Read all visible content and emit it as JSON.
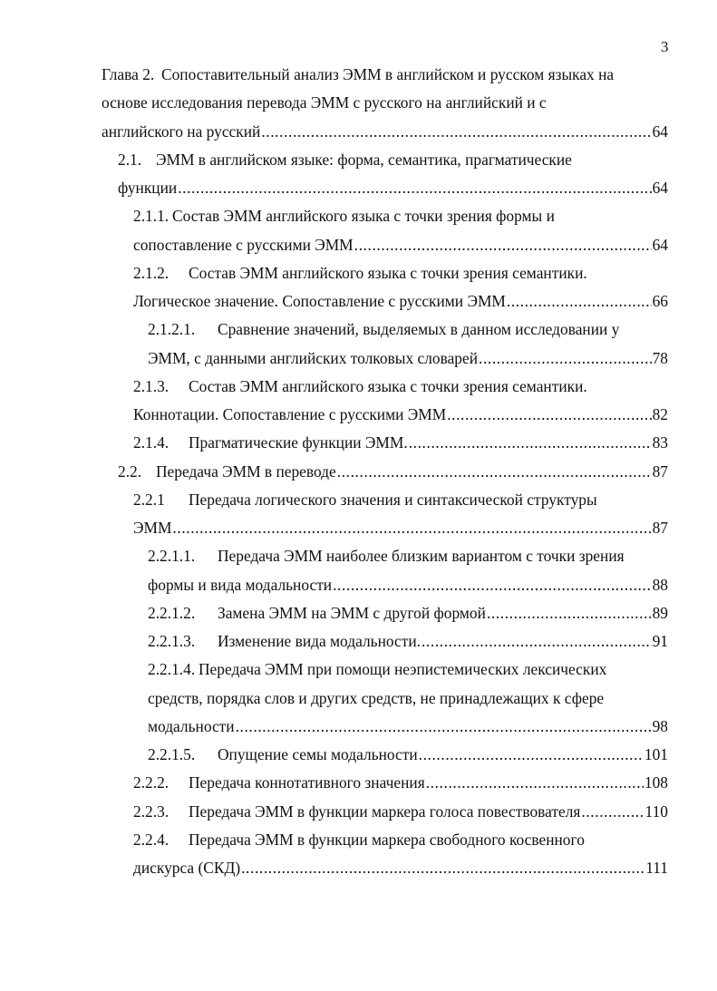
{
  "page_number": "3",
  "toc": [
    {
      "num": "Глава 2.",
      "lines": [
        "Сопоставительный анализ ЭММ в английском и русском языках на",
        "основе исследования перевода ЭММ с русского на английский и с",
        "английского на русский"
      ],
      "page": "64"
    },
    {
      "num": "2.1.",
      "lines": [
        "ЭММ в английском языке: форма, семантика, прагматические",
        "функции"
      ],
      "page": "64"
    },
    {
      "num": "2.1.1.",
      "lines": [
        "Состав ЭММ английского языка с точки зрения формы и",
        "сопоставление с русскими ЭММ"
      ],
      "page": "64"
    },
    {
      "num": "2.1.2.",
      "lines": [
        "Состав ЭММ английского языка с точки зрения семантики.",
        "Логическое значение. Сопоставление с русскими ЭММ"
      ],
      "page": "66"
    },
    {
      "num": "2.1.2.1.",
      "lines": [
        "Сравнение значений, выделяемых в данном исследовании у",
        "ЭММ, с данными английских толковых словарей"
      ],
      "page": "78"
    },
    {
      "num": "2.1.3.",
      "lines": [
        "Состав ЭММ английского языка с точки зрения семантики.",
        "Коннотации. Сопоставление с русскими ЭММ"
      ],
      "page": "82"
    },
    {
      "num": "2.1.4.",
      "lines": [
        "Прагматические функции ЭММ."
      ],
      "page": "83"
    },
    {
      "num": "2.2.",
      "lines": [
        "Передача ЭММ в переводе"
      ],
      "page": "87"
    },
    {
      "num": "2.2.1",
      "lines": [
        "Передача логического значения и синтаксической структуры",
        "ЭММ"
      ],
      "page": "87"
    },
    {
      "num": "2.2.1.1.",
      "lines": [
        "Передача ЭММ наиболее близким вариантом с точки зрения",
        "формы и вида модальности"
      ],
      "page": "88"
    },
    {
      "num": "2.2.1.2.",
      "lines": [
        "Замена ЭММ на ЭММ с другой формой"
      ],
      "page": "89"
    },
    {
      "num": "2.2.1.3.",
      "lines": [
        "Изменение вида модальности."
      ],
      "page": "91"
    },
    {
      "num": "2.2.1.4.",
      "lines": [
        "Передача ЭММ при помощи неэпистемических лексических",
        "средств, порядка слов и других средств, не принадлежащих к сфере",
        "модальности"
      ],
      "page": "98"
    },
    {
      "num": "2.2.1.5.",
      "lines": [
        "Опущение семы модальности"
      ],
      "page": "101"
    },
    {
      "num": "2.2.2.",
      "lines": [
        "Передача коннотативного значения"
      ],
      "page": "108"
    },
    {
      "num": "2.2.3.",
      "lines": [
        "Передача ЭММ в функции маркера голоса повествователя"
      ],
      "page": "110"
    },
    {
      "num": "2.2.4.",
      "lines": [
        "Передача ЭММ в функции маркера свободного косвенного",
        "дискурса (СКД)"
      ],
      "page": "111"
    }
  ]
}
